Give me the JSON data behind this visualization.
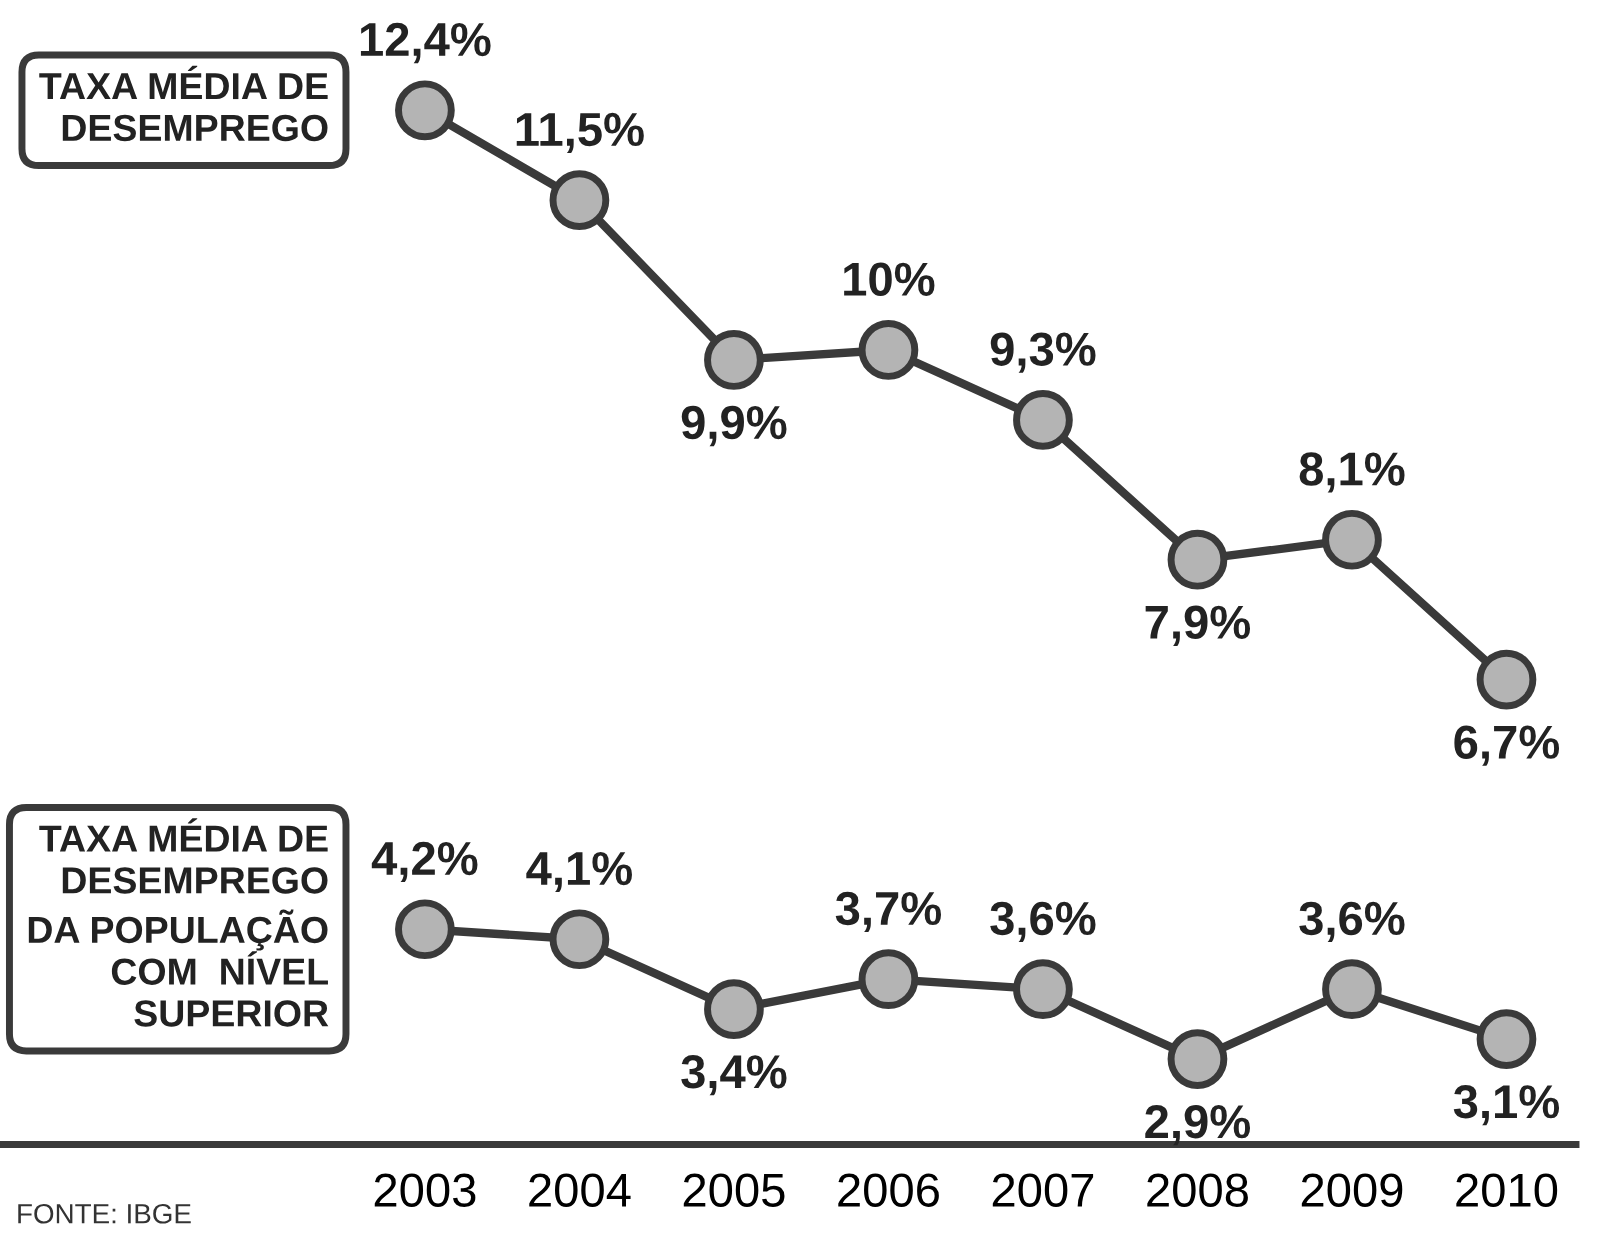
{
  "chart_data": {
    "type": "line",
    "categories": [
      "2003",
      "2004",
      "2005",
      "2006",
      "2007",
      "2008",
      "2009",
      "2010"
    ],
    "series": [
      {
        "name": "TAXA MÉDIA DE\nDESEMPREGO",
        "color": "#b4b4b4",
        "values": [
          12.4,
          11.5,
          9.9,
          10,
          9.3,
          7.9,
          8.1,
          6.7
        ],
        "value_labels": [
          "12,4%",
          "11,5%",
          "9,9%",
          "10%",
          "9,3%",
          "7,9%",
          "8,1%",
          "6,7%"
        ]
      },
      {
        "name": "TAXA MÉDIA DE\nDESEMPREGO\nDA POPULAÇÃO\nCOM  NÍVEL\nSUPERIOR",
        "color": "#b4b4b4",
        "values": [
          4.2,
          4.1,
          3.4,
          3.7,
          3.6,
          2.9,
          3.6,
          3.1
        ],
        "value_labels": [
          "4,2%",
          "4,1%",
          "3,4%",
          "3,7%",
          "3,6%",
          "2,9%",
          "3,6%",
          "3,1%"
        ]
      }
    ],
    "tick_labels": "x",
    "marker": "circle",
    "line_style": "solid",
    "annotations": [
      "FONTE: IBGE"
    ]
  }
}
